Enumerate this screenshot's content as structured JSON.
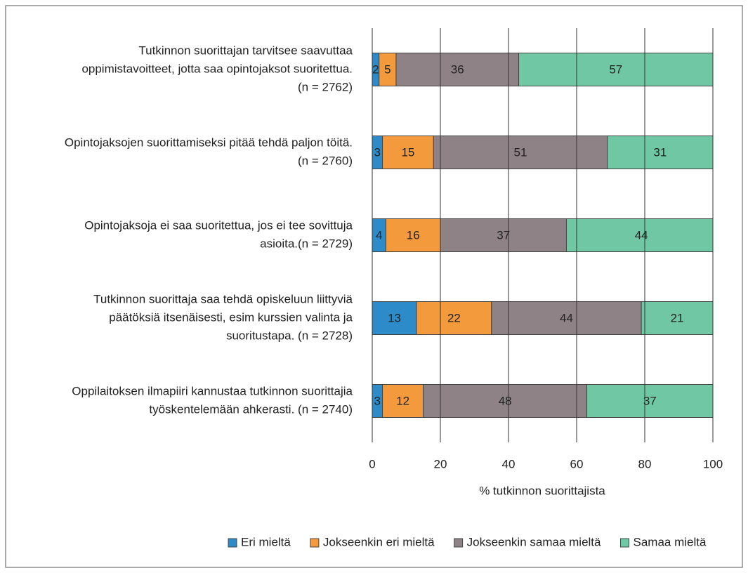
{
  "chart_data": {
    "type": "stacked_barh",
    "categories": [
      [
        "Tutkinnon suorittajan tarvitsee saavuttaa",
        "oppimistavoitteet, jotta saa opintojaksot suoritettua.",
        "(n = 2762)"
      ],
      [
        "Opintojaksojen suorittamiseksi pitää tehdä paljon töitä.",
        "(n = 2760)"
      ],
      [
        "Opintojaksoja ei saa suoritettua, jos ei tee sovittuja",
        "asioita.(n = 2729)"
      ],
      [
        "Tutkinnon suorittaja saa tehdä opiskeluun liittyviä",
        "päätöksiä itsenäisesti, esim  kurssien valinta ja",
        "suoritustapa. (n = 2728)"
      ],
      [
        "Oppilaitoksen ilmapiiri kannustaa tutkinnon suorittajia",
        "työskentelemään ahkerasti. (n = 2740)"
      ]
    ],
    "series": [
      {
        "name": "Eri mieltä",
        "color": "#2e8bc9",
        "values": [
          2,
          3,
          4,
          13,
          3
        ]
      },
      {
        "name": "Jokseenkin eri mieltä",
        "color": "#f39a3d",
        "values": [
          5,
          15,
          16,
          22,
          12
        ]
      },
      {
        "name": "Jokseenkin samaa mieltä",
        "color": "#8f8286",
        "values": [
          36,
          51,
          37,
          44,
          48
        ]
      },
      {
        "name": "Samaa mieltä",
        "color": "#6fc8a3",
        "values": [
          57,
          31,
          44,
          21,
          37
        ]
      }
    ],
    "xlabel": "% tutkinnon suorittajista",
    "xlim": [
      0,
      100
    ],
    "xticks": [
      0,
      20,
      40,
      60,
      80,
      100
    ],
    "grid": true,
    "legend": "bottom"
  }
}
